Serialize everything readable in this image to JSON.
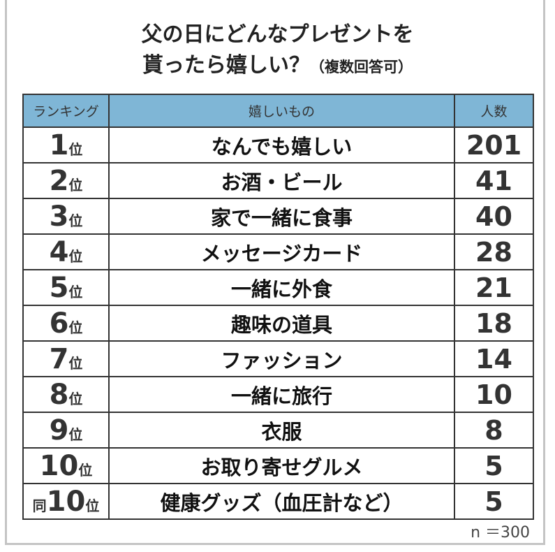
{
  "title": {
    "line1": "父の日にどんなプレゼントを",
    "line2": "貰ったら嬉しい？",
    "line2_note": "（複数回答可）"
  },
  "table": {
    "headers": [
      "ランキング",
      "嬉しいもの",
      "人数"
    ],
    "rows": [
      {
        "prefix": "",
        "rank": "1",
        "unit": "位",
        "item": "なんでも嬉しい",
        "count": "201"
      },
      {
        "prefix": "",
        "rank": "2",
        "unit": "位",
        "item": "お酒・ビール",
        "count": "41"
      },
      {
        "prefix": "",
        "rank": "3",
        "unit": "位",
        "item": "家で一緒に食事",
        "count": "40"
      },
      {
        "prefix": "",
        "rank": "4",
        "unit": "位",
        "item": "メッセージカード",
        "count": "28"
      },
      {
        "prefix": "",
        "rank": "5",
        "unit": "位",
        "item": "一緒に外食",
        "count": "21"
      },
      {
        "prefix": "",
        "rank": "6",
        "unit": "位",
        "item": "趣味の道具",
        "count": "18"
      },
      {
        "prefix": "",
        "rank": "7",
        "unit": "位",
        "item": "ファッション",
        "count": "14"
      },
      {
        "prefix": "",
        "rank": "8",
        "unit": "位",
        "item": "一緒に旅行",
        "count": "10"
      },
      {
        "prefix": "",
        "rank": "9",
        "unit": "位",
        "item": "衣服",
        "count": "8"
      },
      {
        "prefix": "",
        "rank": "10",
        "unit": "位",
        "item": "お取り寄せグルメ",
        "count": "5"
      },
      {
        "prefix": "同",
        "rank": "10",
        "unit": "位",
        "item": "健康グッズ（血圧計など）",
        "count": "5"
      }
    ]
  },
  "note": "n ＝300",
  "colors": {
    "header_bg": "#7fb6d6",
    "border": "#333333"
  }
}
